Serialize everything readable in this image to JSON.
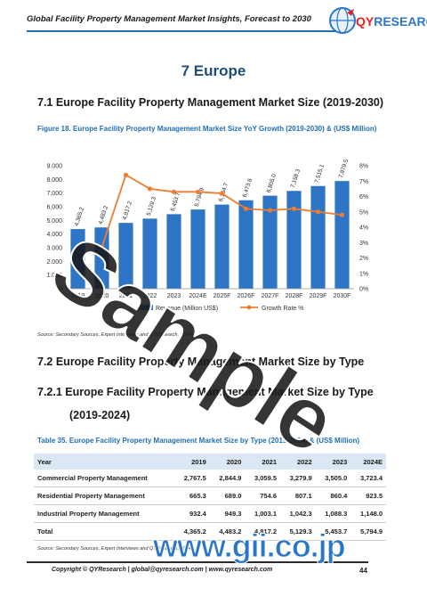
{
  "header": {
    "title": "Global Facility Property Management Market Insights, Forecast to 2030",
    "logo_text": "QYRESEARCH",
    "logo_short": "QY",
    "logo_rest": "RESEARCH"
  },
  "chapter": "7  Europe",
  "section_7_1": "7.1  Europe Facility Property Management Market Size (2019-2030)",
  "figure_caption": "Figure 18.  Europe Facility Property Management Market Size YoY Growth (2019-2030) & (US$ Million)",
  "chart_source": "Source: Secondary Sources, Expert Interviews and QYResearch, 2024",
  "chart_data": {
    "type": "bar",
    "categories": [
      "2019",
      "2020",
      "2021",
      "2022",
      "2023",
      "2024E",
      "2025F",
      "2026F",
      "2027F",
      "2028F",
      "2029F",
      "2030F"
    ],
    "series": [
      {
        "name": "Revenue (Million US$)",
        "type": "bar",
        "values": [
          4365.2,
          4483.2,
          4817.2,
          5129.3,
          5453.7,
          5794.9,
          6154.7,
          6473.6,
          6805.0,
          7158.3,
          7515.1,
          7879.5
        ]
      },
      {
        "name": "Growth Rate %",
        "type": "line",
        "values": [
          null,
          2.7,
          7.4,
          6.5,
          6.3,
          6.3,
          6.2,
          5.2,
          5.1,
          5.2,
          5.0,
          4.8
        ]
      }
    ],
    "value_labels": [
      "4,365.2",
      "4,483.2",
      "4,817.2",
      "5,129.3",
      "5,453.7",
      "5,794.9",
      "6,154.7",
      "6,473.6",
      "6,805.0",
      "7,158.3",
      "7,515.1",
      "7,879.5"
    ],
    "ylim": [
      0,
      9000
    ],
    "y_ticks": [
      "0",
      "1.000",
      "2.000",
      "3.000",
      "4.000",
      "5.000",
      "6.000",
      "7.000",
      "8.000",
      "9.000"
    ],
    "y2lim": [
      0,
      8
    ],
    "y2_ticks": [
      "0%",
      "1%",
      "2%",
      "3%",
      "4%",
      "5%",
      "6%",
      "7%",
      "8%"
    ],
    "legend_position": "bottom",
    "colors": {
      "bar": "#2e75c6",
      "line": "#ed7d31"
    }
  },
  "section_7_2": "7.2  Europe Facility Property Management Market Size by Type",
  "section_7_2_1": "7.2.1  Europe Facility Property Management Market Size by Type",
  "section_7_2_1_years": "(2019-2024)",
  "table_caption": "Table 35.  Europe Facility Property Management Market Size by Type (2019-2024) & (US$ Million)",
  "table": {
    "headers": [
      "Year",
      "2019",
      "2020",
      "2021",
      "2022",
      "2023",
      "2024E"
    ],
    "rows": [
      [
        "Commercial Property Management",
        "2,767.5",
        "2,844.9",
        "3,059.5",
        "3,279.9",
        "3,505.0",
        "3,723.4"
      ],
      [
        "Residential Property Management",
        "665.3",
        "689.0",
        "754.6",
        "807.1",
        "860.4",
        "923.5"
      ],
      [
        "Industrial Property Management",
        "932.4",
        "949.3",
        "1,003.1",
        "1,042.3",
        "1,088.3",
        "1,148.0"
      ],
      [
        "Total",
        "4,365.2",
        "4,483.2",
        "4,817.2",
        "5,129.3",
        "5,453.7",
        "5,794.9"
      ]
    ]
  },
  "table_source": "Source: Secondary Sources, Expert Interviews and QYResearch, 2024",
  "footer": {
    "text": "Copyright © QYResearch | global@qyresearch.com | www.qyresearch.com",
    "page": "44"
  },
  "watermark": "Sample",
  "gii_mark": "www.gii.co.jp"
}
